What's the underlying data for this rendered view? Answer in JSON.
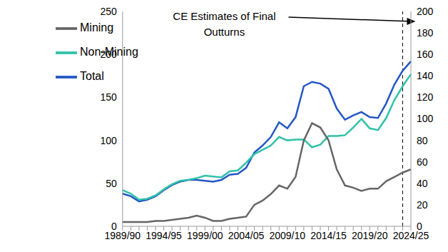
{
  "chart_data": {
    "type": "line",
    "categories": [
      "1989/90",
      null,
      null,
      null,
      null,
      "1994/95",
      null,
      null,
      null,
      null,
      "1999/00",
      null,
      null,
      null,
      null,
      "2004/05",
      null,
      null,
      null,
      null,
      "2009/10",
      null,
      null,
      null,
      null,
      "2014/15",
      null,
      null,
      null,
      null,
      "2019/20",
      null,
      null,
      null,
      null,
      "2024/25"
    ],
    "series": [
      {
        "name": "Total",
        "color": "#2457c5",
        "values": [
          38,
          35,
          29,
          31,
          35,
          42,
          48,
          52,
          54,
          54,
          53,
          52,
          54,
          60,
          61,
          68,
          86,
          94,
          104,
          121,
          114,
          127,
          163,
          168,
          166,
          160,
          137,
          124,
          129,
          133,
          127,
          126,
          143,
          165,
          181,
          192
        ]
      },
      {
        "name": "Non-Mining",
        "color": "#2fc1a8",
        "values": [
          42,
          38,
          31,
          32,
          36,
          43,
          49,
          53,
          54,
          56,
          59,
          58,
          57,
          64,
          65,
          74,
          84,
          89,
          94,
          104,
          100,
          101,
          101,
          92,
          95,
          105,
          105,
          106,
          115,
          125,
          114,
          112,
          126,
          147,
          163,
          177
        ]
      },
      {
        "name": "Mining",
        "color": "#666666",
        "axis": "y2",
        "values": [
          4,
          4,
          4,
          4,
          5,
          5,
          6,
          7,
          8,
          10,
          8,
          5,
          5,
          7,
          8,
          9,
          20,
          24,
          30,
          38,
          35,
          46,
          80,
          96,
          92,
          80,
          53,
          38,
          36,
          33,
          35,
          35,
          42,
          46,
          50,
          53
        ]
      }
    ],
    "ylim": [
      0,
      250
    ],
    "yticks": [
      0,
      50,
      100,
      150,
      200,
      250
    ],
    "y2lim": [
      0,
      200
    ],
    "y2ticks": [
      0,
      20,
      40,
      60,
      80,
      100,
      120,
      140,
      160,
      180,
      200
    ],
    "legend": "top-left",
    "annotation": {
      "lines": [
        "CE Estimates of Final",
        "Outturns"
      ],
      "x_index": 34
    }
  }
}
